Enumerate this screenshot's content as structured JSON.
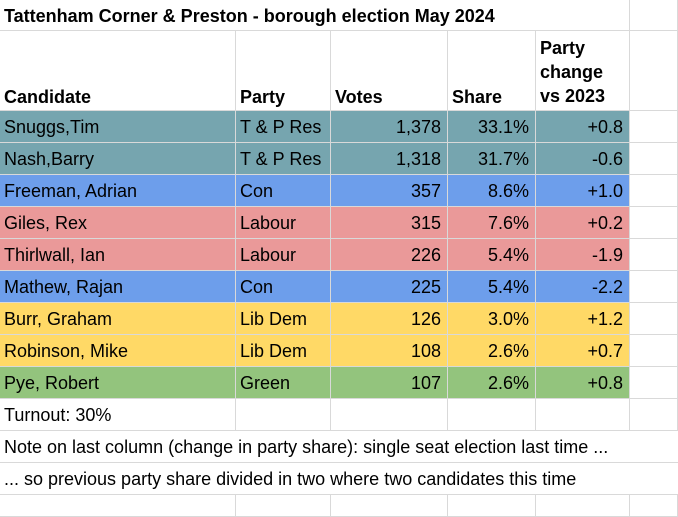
{
  "title": "Tattenham Corner & Preston  - borough election May 2024",
  "headers": {
    "candidate": "Candidate",
    "party": "Party",
    "votes": "Votes",
    "share": "Share",
    "change_line1": "Party",
    "change_line2": "change",
    "change_line3": "vs 2023"
  },
  "colors": {
    "tp_res": "#76a5af",
    "con": "#6d9eeb",
    "labour": "#ea9999",
    "lib_dem": "#ffd966",
    "green": "#93c47d"
  },
  "rows": [
    {
      "candidate": "Snuggs,Tim",
      "party": "T & P Res",
      "votes": "1,378",
      "share": "33.1%",
      "change": "+0.8",
      "color": "#76a5af"
    },
    {
      "candidate": "Nash,Barry",
      "party": "T & P Res",
      "votes": "1,318",
      "share": "31.7%",
      "change": "-0.6",
      "color": "#76a5af"
    },
    {
      "candidate": "Freeman, Adrian",
      "party": "Con",
      "votes": "357",
      "share": "8.6%",
      "change": "+1.0",
      "color": "#6d9eeb"
    },
    {
      "candidate": "Giles, Rex",
      "party": "Labour",
      "votes": "315",
      "share": "7.6%",
      "change": "+0.2",
      "color": "#ea9999"
    },
    {
      "candidate": "Thirlwall, Ian",
      "party": "Labour",
      "votes": "226",
      "share": "5.4%",
      "change": "-1.9",
      "color": "#ea9999"
    },
    {
      "candidate": "Mathew, Rajan",
      "party": "Con",
      "votes": "225",
      "share": "5.4%",
      "change": "-2.2",
      "color": "#6d9eeb"
    },
    {
      "candidate": "Burr, Graham",
      "party": "Lib Dem",
      "votes": "126",
      "share": "3.0%",
      "change": "+1.2",
      "color": "#ffd966"
    },
    {
      "candidate": "Robinson, Mike",
      "party": "Lib Dem",
      "votes": "108",
      "share": "2.6%",
      "change": "+0.7",
      "color": "#ffd966"
    },
    {
      "candidate": "Pye, Robert",
      "party": "Green",
      "votes": "107",
      "share": "2.6%",
      "change": "+0.8",
      "color": "#93c47d"
    }
  ],
  "turnout": "Turnout: 30%",
  "note1": "Note on last column (change in party share): single seat election last time ...",
  "note2": "... so previous party share divided in two where two candidates this time"
}
